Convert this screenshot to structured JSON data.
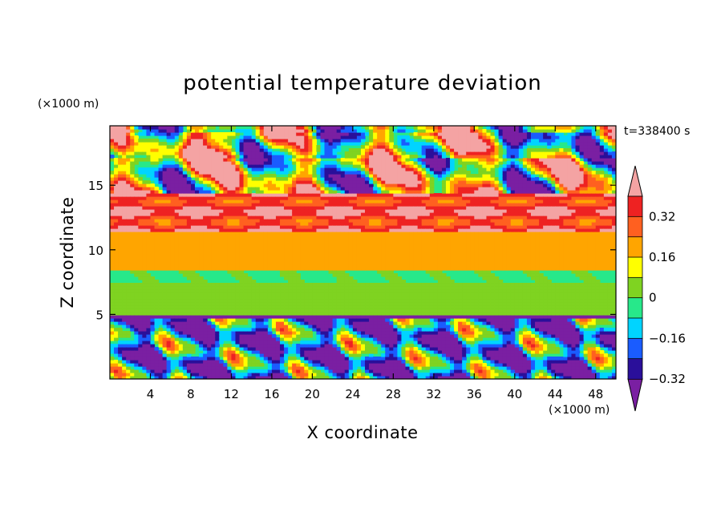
{
  "chart_data": {
    "type": "heatmap",
    "title": "potential temperature deviation",
    "xlabel": "X coordinate",
    "ylabel": "Z coordinate",
    "x_unit": "(×1000 m)",
    "y_unit": "(×1000 m)",
    "time_label": "t=338400 s",
    "xlim": [
      0,
      50
    ],
    "ylim": [
      0,
      19.6
    ],
    "x_ticks": [
      4,
      8,
      12,
      16,
      20,
      24,
      28,
      32,
      36,
      40,
      44,
      48
    ],
    "y_ticks": [
      5,
      10,
      15
    ],
    "colorbar": {
      "levels": [
        -0.4,
        -0.32,
        -0.24,
        -0.16,
        -0.08,
        0,
        0.08,
        0.16,
        0.24,
        0.32,
        0.4
      ],
      "labeled_levels": [
        0.32,
        0.16,
        0,
        -0.16,
        -0.32
      ],
      "colors": [
        "#7a1fa2",
        "#2a0f9a",
        "#1a5cff",
        "#00d4ff",
        "#27e88a",
        "#7fd321",
        "#ffff00",
        "#ffa500",
        "#ff6020",
        "#ee2222",
        "#f4a3a3"
      ],
      "extend": "both"
    },
    "layers": [
      {
        "z_range": [
          0,
          5.0
        ],
        "note": "turbulent eddies, mixed values",
        "mean": -0.2
      },
      {
        "z_range": [
          5.0,
          7.5
        ],
        "mean": -0.04
      },
      {
        "z_range": [
          7.5,
          8.5
        ],
        "mean": -0.1
      },
      {
        "z_range": [
          8.5,
          11.5
        ],
        "mean": 0.12
      },
      {
        "z_range": [
          11.5,
          14.5
        ],
        "mean": 0.3
      },
      {
        "z_range": [
          14.5,
          19.6
        ],
        "note": "mixed positive (>0.4) and negative (<-0.4) blobs",
        "mean": 0.0
      }
    ]
  }
}
